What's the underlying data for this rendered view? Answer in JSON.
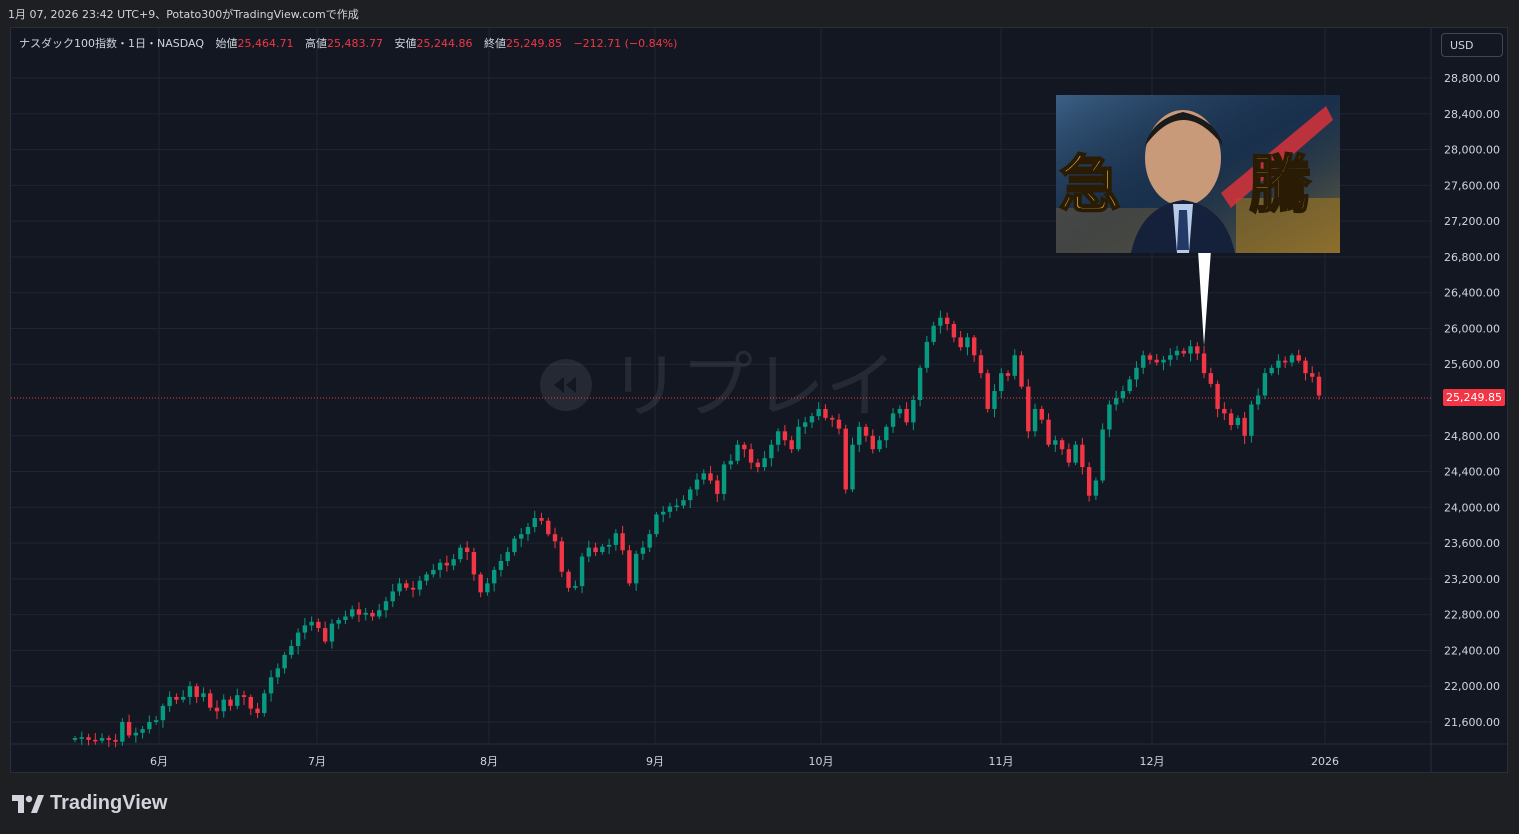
{
  "header": {
    "caption": "1月 07, 2026 23:42 UTC+9、Potato300がTradingView.comで作成"
  },
  "legend": {
    "symbol": "ナスダック100指数・1日・NASDAQ",
    "open_label": "始値",
    "open": "25,464.71",
    "high_label": "高値",
    "high": "25,483.77",
    "low_label": "安値",
    "low": "25,244.86",
    "close_label": "終値",
    "close": "25,249.85",
    "change": "−212.71 (−0.84%)"
  },
  "currency_button": "USD",
  "watermark": "リプレイ",
  "last_price_label": "25,249.85",
  "brand": "TradingView",
  "colors": {
    "up": "#089981",
    "down": "#f23645",
    "background": "#131722",
    "grid": "#1f2430"
  },
  "chart_data": {
    "type": "candlestick",
    "y_ticks": [
      "28,800.00",
      "28,400.00",
      "28,000.00",
      "27,600.00",
      "27,200.00",
      "26,800.00",
      "26,400.00",
      "26,000.00",
      "25,600.00",
      "24,800.00",
      "24,400.00",
      "24,000.00",
      "23,600.00",
      "23,200.00",
      "22,800.00",
      "22,400.00",
      "22,000.00",
      "21,600.00"
    ],
    "x_ticks": [
      "6月",
      "7月",
      "8月",
      "9月",
      "10月",
      "11月",
      "12月",
      "2026"
    ],
    "ylim": [
      21300,
      29200
    ],
    "last_close": 25249.85,
    "annotation": {
      "type": "image-callout",
      "text": "急騰",
      "attached_to_close": 25800
    },
    "candles_close": [
      21420,
      21430,
      21400,
      21390,
      21420,
      21400,
      21380,
      21600,
      21450,
      21480,
      21520,
      21600,
      21620,
      21780,
      21880,
      21850,
      21880,
      22000,
      21880,
      21920,
      21760,
      21720,
      21850,
      21780,
      21900,
      21880,
      21750,
      21700,
      21920,
      22100,
      22200,
      22350,
      22450,
      22600,
      22680,
      22720,
      22650,
      22500,
      22700,
      22740,
      22780,
      22860,
      22800,
      22820,
      22780,
      22850,
      22950,
      23060,
      23150,
      23100,
      23080,
      23180,
      23250,
      23300,
      23380,
      23350,
      23420,
      23550,
      23500,
      23250,
      23050,
      23150,
      23300,
      23400,
      23500,
      23650,
      23700,
      23780,
      23880,
      23850,
      23700,
      23620,
      23280,
      23100,
      23120,
      23450,
      23550,
      23500,
      23560,
      23580,
      23710,
      23520,
      23150,
      23480,
      23550,
      23700,
      23920,
      23950,
      24010,
      24020,
      24080,
      24200,
      24310,
      24380,
      24300,
      24150,
      24480,
      24520,
      24700,
      24650,
      24500,
      24450,
      24550,
      24700,
      24850,
      24750,
      24650,
      24900,
      24950,
      25020,
      25100,
      25000,
      24980,
      24880,
      24200,
      24700,
      24900,
      24800,
      24650,
      24750,
      24900,
      25050,
      25100,
      24950,
      25200,
      25560,
      25850,
      26030,
      26120,
      26050,
      25900,
      25790,
      25900,
      25700,
      25500,
      25100,
      25300,
      25500,
      25470,
      25700,
      25350,
      24850,
      25100,
      24980,
      24700,
      24750,
      24650,
      24500,
      24700,
      24450,
      24130,
      24300,
      24870,
      25150,
      25220,
      25300,
      25430,
      25560,
      25700,
      25650,
      25620,
      25650,
      25700,
      25750,
      25720,
      25800,
      25720,
      25500,
      25380,
      25100,
      25050,
      24920,
      25000,
      24800,
      25150,
      25250,
      25500,
      25560,
      25640,
      25620,
      25700,
      25640,
      25500,
      25460,
      25250
    ]
  }
}
